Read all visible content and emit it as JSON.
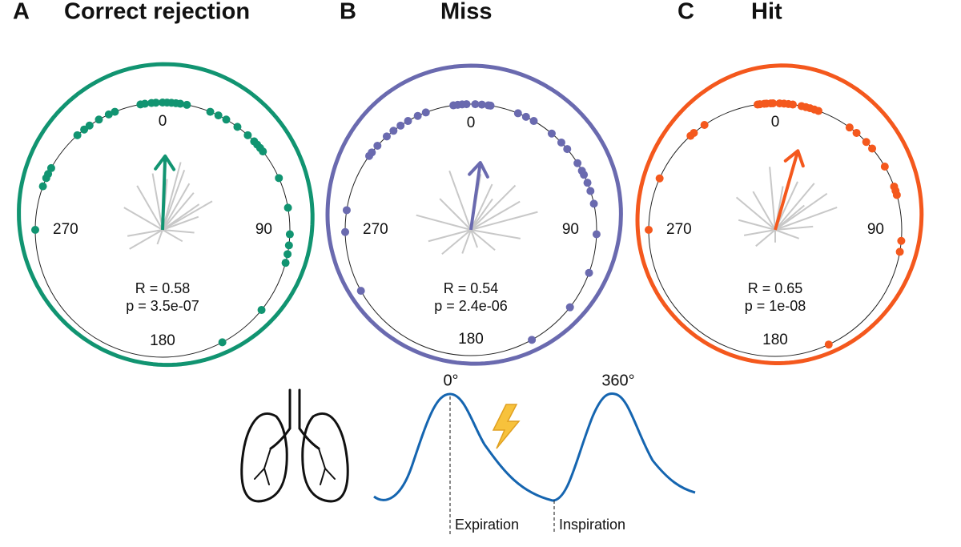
{
  "panels": [
    {
      "letter": "A",
      "title": "Correct rejection",
      "color": "#119471",
      "angles": [
        350,
        352,
        355,
        357,
        0,
        2,
        4,
        6,
        8,
        11,
        318,
        322,
        325,
        330,
        335,
        338,
        290,
        294,
        296,
        299,
        270,
        22,
        26,
        30,
        36,
        42,
        46,
        48,
        50,
        52,
        66,
        80,
        92,
        97,
        101,
        105,
        129,
        152
      ],
      "mean_angle": 2,
      "R": 0.58,
      "R_label": "R = 0.58",
      "p_label": "p = 3.5e-07",
      "axis_labels": [
        "0",
        "90",
        "180",
        "270"
      ],
      "lines": [
        [
          350,
          0.45
        ],
        [
          5,
          0.4
        ],
        [
          20,
          0.5
        ],
        [
          30,
          0.42
        ],
        [
          40,
          0.38
        ],
        [
          55,
          0.35
        ],
        [
          70,
          0.3
        ],
        [
          95,
          0.25
        ],
        [
          120,
          0.18
        ],
        [
          200,
          0.12
        ],
        [
          240,
          0.3
        ],
        [
          260,
          0.28
        ],
        [
          300,
          0.35
        ],
        [
          330,
          0.4
        ],
        [
          15,
          0.55
        ],
        [
          60,
          0.45
        ]
      ]
    },
    {
      "letter": "B",
      "title": "Miss",
      "color": "#6a6aaf",
      "angles": [
        352,
        354,
        356,
        358,
        2,
        5,
        8,
        9,
        306,
        308,
        312,
        318,
        322,
        326,
        330,
        335,
        339,
        279,
        269,
        241,
        22,
        26,
        30,
        40,
        46,
        50,
        58,
        62,
        64,
        68,
        72,
        78,
        92,
        110,
        128,
        151
      ],
      "mean_angle": 8,
      "R": 0.54,
      "R_label": "R = 0.54",
      "p_label": "p = 2.4e-06",
      "axis_labels": [
        "0",
        "90",
        "180",
        "270"
      ],
      "lines": [
        [
          340,
          0.5
        ],
        [
          10,
          0.45
        ],
        [
          25,
          0.4
        ],
        [
          45,
          0.5
        ],
        [
          60,
          0.45
        ],
        [
          75,
          0.55
        ],
        [
          100,
          0.4
        ],
        [
          130,
          0.25
        ],
        [
          160,
          0.15
        ],
        [
          200,
          0.2
        ],
        [
          230,
          0.3
        ],
        [
          255,
          0.35
        ],
        [
          285,
          0.45
        ],
        [
          315,
          0.35
        ],
        [
          35,
          0.3
        ]
      ]
    },
    {
      "letter": "C",
      "title": "Hit",
      "color": "#f4581d",
      "angles": [
        352,
        353,
        355,
        356,
        358,
        359,
        2,
        4,
        6,
        8,
        12,
        14,
        16,
        18,
        20,
        36,
        40,
        46,
        50,
        60,
        70,
        72,
        74,
        95,
        100,
        155,
        318,
        320,
        326,
        294,
        270
      ],
      "mean_angle": 16,
      "R": 0.65,
      "R_label": "R = 0.65",
      "p_label": "p = 1e-08",
      "axis_labels": [
        "0",
        "90",
        "180",
        "270"
      ],
      "lines": [
        [
          355,
          0.5
        ],
        [
          10,
          0.35
        ],
        [
          25,
          0.42
        ],
        [
          40,
          0.48
        ],
        [
          55,
          0.5
        ],
        [
          70,
          0.52
        ],
        [
          85,
          0.3
        ],
        [
          110,
          0.2
        ],
        [
          180,
          0.1
        ],
        [
          230,
          0.2
        ],
        [
          260,
          0.25
        ],
        [
          285,
          0.3
        ],
        [
          310,
          0.4
        ],
        [
          330,
          0.35
        ],
        [
          50,
          0.3
        ]
      ]
    }
  ],
  "schematic": {
    "peak_start": "0°",
    "peak_end": "360°",
    "phase_1": "Expiration",
    "phase_2": "Inspiration"
  }
}
